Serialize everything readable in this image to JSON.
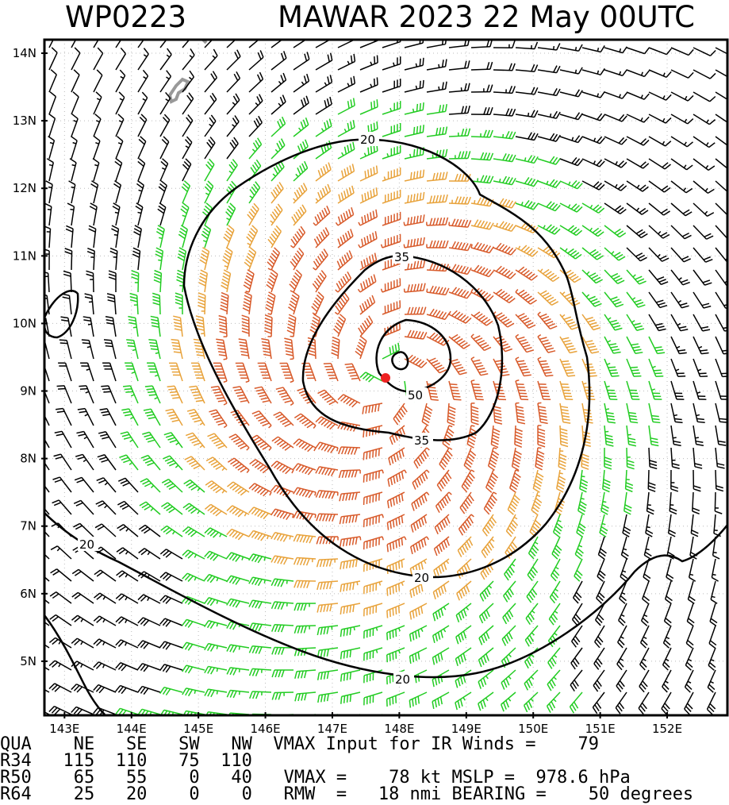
{
  "header": {
    "storm_id": "WP0223",
    "title": "MAWAR 2023 22 May 00UTC"
  },
  "map": {
    "lat_labels": [
      "14N",
      "13N",
      "12N",
      "11N",
      "10N",
      "9N",
      "8N",
      "7N",
      "6N",
      "5N"
    ],
    "lon_labels": [
      "143E",
      "144E",
      "145E",
      "146E",
      "147E",
      "148E",
      "149E",
      "150E",
      "151E",
      "152E"
    ],
    "contour_labels": [
      "20",
      "35",
      "50",
      "20",
      "35",
      "20",
      "20"
    ],
    "colors": {
      "below_34kt": "#000000",
      "gale_34kt": "#22cc22",
      "storm_50kt": "#e8a23a",
      "hurricane_64kt": "#d85a2a",
      "center": "#ee2222",
      "island": "#999999"
    }
  },
  "footer": {
    "line1": "QUA    NE   SE   SW   NW  VMAX Input for IR Winds =    79",
    "line2": "R34   115  110   75  110",
    "line3": "R50    65   55    0   40   VMAX =    78 kt MSLP =  978.6 hPa",
    "line4": "R64    25   20    0    0   RMW  =   18 nmi BEARING =    50 degrees"
  }
}
